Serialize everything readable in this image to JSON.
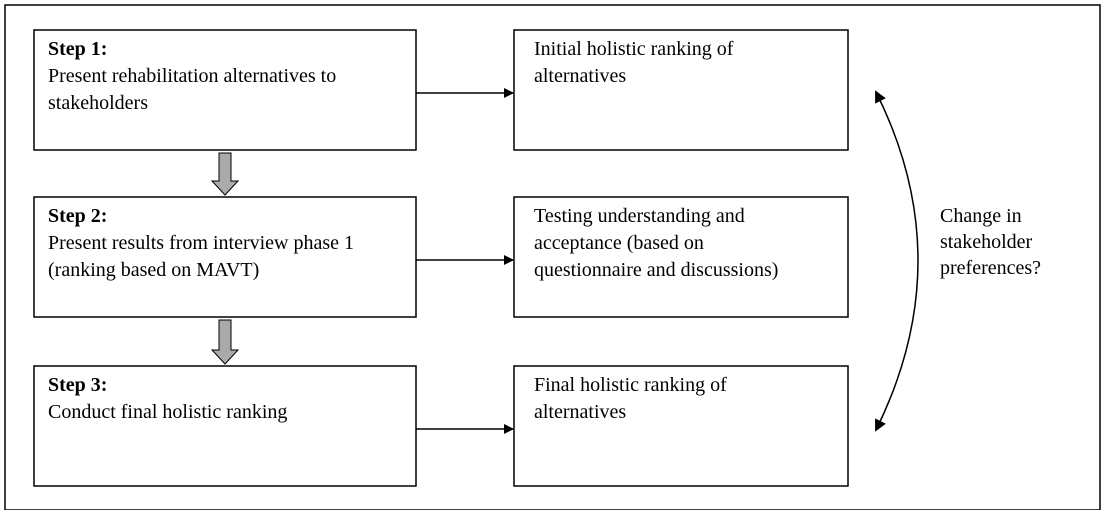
{
  "steps": [
    {
      "title": "Step 1:",
      "lines": [
        "Present rehabilitation alternatives to",
        "stakeholders"
      ]
    },
    {
      "title": "Step 2:",
      "lines": [
        "Present results from interview phase 1",
        "(ranking based on MAVT)"
      ]
    },
    {
      "title": "Step 3:",
      "lines": [
        "Conduct final holistic ranking"
      ]
    }
  ],
  "results": [
    {
      "lines": [
        "Initial holistic ranking of",
        "alternatives"
      ]
    },
    {
      "lines": [
        "Testing understanding and",
        "acceptance (based on",
        "questionnaire and discussions)"
      ]
    },
    {
      "lines": [
        "Final holistic ranking of",
        "alternatives"
      ]
    }
  ],
  "side_label": {
    "lines": [
      "Change in",
      "stakeholder",
      "preferences?"
    ]
  }
}
